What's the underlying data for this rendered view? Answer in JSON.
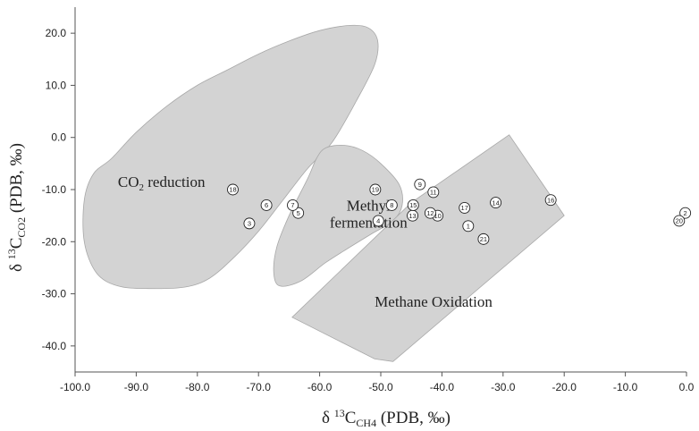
{
  "chart_data": {
    "type": "scatter",
    "title": "",
    "xlabel": "δ 13CCH4 (PDB, ‰)",
    "ylabel": "δ 13CCO2 (PDB, ‰)",
    "xlabel_parts": {
      "prefix": "δ ",
      "sup": "13",
      "main": "C",
      "sub": "CH4",
      "suffix": " (PDB, ‰)"
    },
    "ylabel_parts": {
      "prefix": "δ ",
      "sup": "13",
      "main": "C",
      "sub": "CO2",
      "suffix": " (PDB, ‰)"
    },
    "xlim": [
      -100,
      0
    ],
    "ylim": [
      -45,
      25
    ],
    "x_ticks": [
      -100,
      -90,
      -80,
      -70,
      -60,
      -50,
      -40,
      -30,
      -20,
      -10,
      0
    ],
    "x_tick_labels": [
      "-100.0",
      "-90.0",
      "-80.0",
      "-70.0",
      "-60.0",
      "-50.0",
      "-40.0",
      "-30.0",
      "-20.0",
      "-10.0",
      "0.0"
    ],
    "y_ticks": [
      -40,
      -30,
      -20,
      -10,
      0,
      10,
      20
    ],
    "y_tick_labels": [
      "-40.0",
      "-30.0",
      "-20.0",
      "-10.0",
      "0.0",
      "10.0",
      "20.0"
    ],
    "grid": false,
    "regions": [
      {
        "name": "co2-reduction",
        "label_main": "CO",
        "label_sub": "2",
        "label_rest": " reduction",
        "label_x": -93,
        "label_y": -9.5,
        "polygon": [
          [
            -97,
            -7
          ],
          [
            -94,
            -4
          ],
          [
            -90,
            1
          ],
          [
            -85,
            6
          ],
          [
            -80,
            10
          ],
          [
            -75,
            13
          ],
          [
            -70,
            16
          ],
          [
            -65,
            18.5
          ],
          [
            -60,
            20.5
          ],
          [
            -55,
            21.5
          ],
          [
            -52,
            21
          ],
          [
            -50.5,
            18.5
          ],
          [
            -51,
            14
          ],
          [
            -54,
            7
          ],
          [
            -58,
            -1
          ],
          [
            -62,
            -6
          ],
          [
            -66,
            -12
          ],
          [
            -70,
            -18
          ],
          [
            -74,
            -23
          ],
          [
            -78,
            -27
          ],
          [
            -82,
            -28.7
          ],
          [
            -88,
            -29
          ],
          [
            -93,
            -28.5
          ],
          [
            -96.5,
            -26
          ],
          [
            -98.5,
            -20
          ],
          [
            -98.5,
            -12
          ]
        ]
      },
      {
        "name": "methyl-fermentation",
        "label_lines": [
          "Methyl",
          "fermentation"
        ],
        "label_x": -52,
        "label_y": -14,
        "polygon": [
          [
            -59,
            -2
          ],
          [
            -56,
            -1.5
          ],
          [
            -53,
            -2.5
          ],
          [
            -50,
            -5
          ],
          [
            -47,
            -9
          ],
          [
            -46.5,
            -13
          ],
          [
            -48,
            -16
          ],
          [
            -51.5,
            -18.5
          ],
          [
            -55,
            -21
          ],
          [
            -59,
            -24
          ],
          [
            -63,
            -27.5
          ],
          [
            -66.5,
            -28.5
          ],
          [
            -67.5,
            -26
          ],
          [
            -67,
            -21
          ],
          [
            -65,
            -15
          ],
          [
            -62,
            -8
          ],
          [
            -60.5,
            -4
          ]
        ]
      },
      {
        "name": "methane-oxidation",
        "label": "Methane Oxidation",
        "label_x": -51,
        "label_y": -32.5,
        "polygon": [
          [
            -64.5,
            -34.5
          ],
          [
            -45,
            -12.5
          ],
          [
            -29,
            0.5
          ],
          [
            -20,
            -15
          ],
          [
            -48,
            -43
          ],
          [
            -51,
            -42.5
          ]
        ]
      }
    ],
    "points": [
      {
        "id": "1",
        "x": -35.7,
        "y": -17
      },
      {
        "id": "2",
        "x": -0.2,
        "y": -14.5
      },
      {
        "id": "3",
        "x": -71.5,
        "y": -16.5
      },
      {
        "id": "4",
        "x": -50.4,
        "y": -16
      },
      {
        "id": "5",
        "x": -63.5,
        "y": -14.5
      },
      {
        "id": "6",
        "x": -68.7,
        "y": -13
      },
      {
        "id": "7",
        "x": -64.4,
        "y": -13
      },
      {
        "id": "8",
        "x": -48.2,
        "y": -13
      },
      {
        "id": "9",
        "x": -43.6,
        "y": -9
      },
      {
        "id": "10",
        "x": -40.7,
        "y": -15
      },
      {
        "id": "11",
        "x": -41.4,
        "y": -10.5
      },
      {
        "id": "12",
        "x": -41.9,
        "y": -14.5
      },
      {
        "id": "13",
        "x": -44.8,
        "y": -15
      },
      {
        "id": "14",
        "x": -31.2,
        "y": -12.5
      },
      {
        "id": "15",
        "x": -44.7,
        "y": -13
      },
      {
        "id": "16",
        "x": -22.2,
        "y": -12
      },
      {
        "id": "17",
        "x": -36.3,
        "y": -13.5
      },
      {
        "id": "18",
        "x": -74.2,
        "y": -10
      },
      {
        "id": "19",
        "x": -50.9,
        "y": -10
      },
      {
        "id": "20",
        "x": -1.2,
        "y": -16
      },
      {
        "id": "21",
        "x": -33.2,
        "y": -19.5
      }
    ],
    "colors": {
      "region_fill": "#d3d3d3",
      "region_stroke": "#a8a8a8",
      "axis": "#555555",
      "text": "#222222"
    }
  }
}
